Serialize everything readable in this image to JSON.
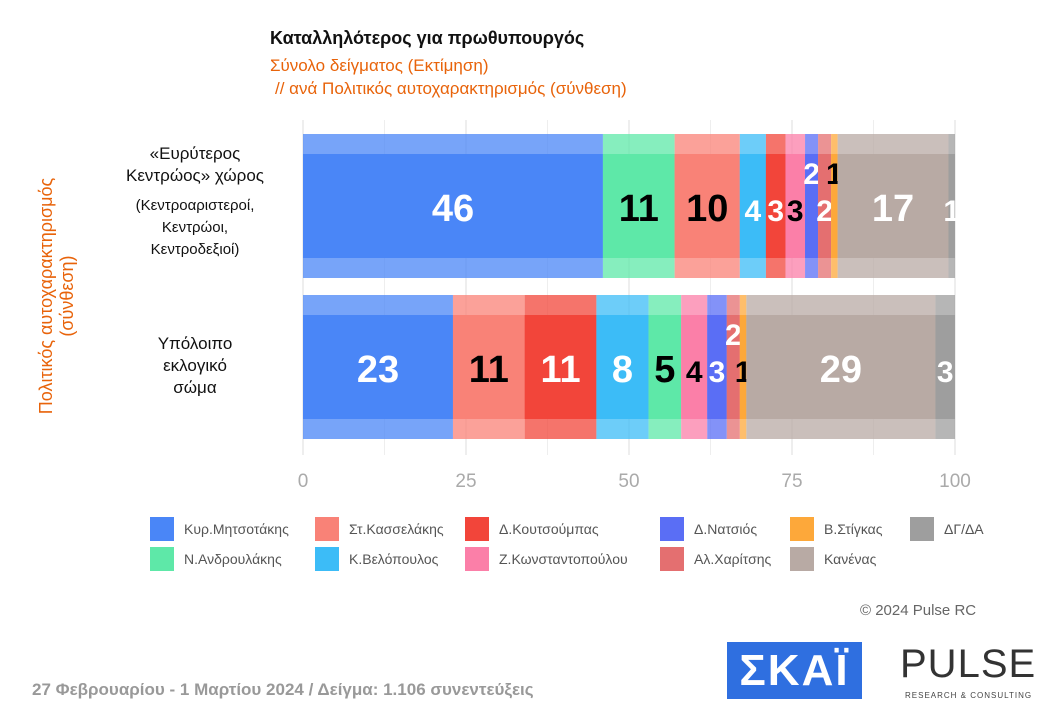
{
  "chart_data": {
    "type": "bar",
    "orientation": "horizontal",
    "stacked": true,
    "title": "Καταλληλότερος για πρωθυπουργός",
    "subtitle": [
      "Σύνολο δείγματος   (Εκτίμηση)",
      "// ανά Πολιτικός αυτοχαρακτηρισμός (σύνθεση)"
    ],
    "ylabel": "Πολιτικός αυτοχαρακτηρισμός (σύνθεση)",
    "categories": [
      {
        "lines": [
          "«Ευρύτερος",
          "Κεντρώος» χώρος"
        ],
        "sub": [
          "(Κεντροαριστεροί,",
          "Κεντρώοι,",
          "Κεντροδεξιοί)"
        ]
      },
      {
        "lines": [
          "Υπόλοιπο",
          "εκλογικό",
          "σώμα"
        ],
        "sub": []
      }
    ],
    "xlim": [
      0,
      100
    ],
    "xticks": [
      "0",
      "25",
      "50",
      "75",
      "100"
    ],
    "grid": true,
    "legend_position": "bottom",
    "series": [
      {
        "name": "Κυρ.Μητσοτάκης",
        "color": "#4a86f7",
        "values": [
          46,
          23
        ]
      },
      {
        "name": "Ν.Ανδρουλάκης",
        "color": "#5ee8a8",
        "values": [
          11,
          0
        ]
      },
      {
        "name": "Στ.Κασσελάκης",
        "color": "#f98277",
        "values": [
          10,
          11
        ]
      },
      {
        "name": "Δ.Κουτσούμπας",
        "color": "#f2453a",
        "values": [
          0,
          11
        ]
      },
      {
        "name": "Κ.Βελόπουλος",
        "color": "#3cbcf7",
        "values": [
          4,
          8
        ]
      },
      {
        "name": "Ν.Ανδρουλάκης (2)",
        "color": "#5ee8a8",
        "values": [
          0,
          5
        ]
      },
      {
        "name": "Δ.Κουτσούμπας (2)",
        "color": "#f2453a",
        "values": [
          3,
          0
        ]
      },
      {
        "name": "Ζ.Κωνσταντοπούλου",
        "color": "#fb7fa8",
        "values": [
          3,
          4
        ]
      },
      {
        "name": "Δ.Νατσιός",
        "color": "#5a6ef5",
        "values": [
          2,
          3
        ]
      },
      {
        "name": "Αλ.Χαρίτσης",
        "color": "#e46f70",
        "values": [
          2,
          2
        ]
      },
      {
        "name": "Β.Στίγκας",
        "color": "#fda83a",
        "values": [
          1,
          1
        ]
      },
      {
        "name": "Κανένας",
        "color": "#b8aaa4",
        "values": [
          17,
          29
        ]
      },
      {
        "name": "ΔΓ/ΔΑ",
        "color": "#9e9e9e",
        "values": [
          1,
          3
        ]
      }
    ],
    "segments": [
      [
        {
          "s": "Κυρ.Μητσοτάκης",
          "v": 46,
          "c": "#4a86f7",
          "t": "#fff"
        },
        {
          "s": "Ν.Ανδρουλάκης",
          "v": 11,
          "c": "#5ee8a8",
          "t": "#000"
        },
        {
          "s": "Στ.Κασσελάκης",
          "v": 10,
          "c": "#f98277",
          "t": "#000"
        },
        {
          "s": "Κ.Βελόπουλος",
          "v": 4,
          "c": "#3cbcf7",
          "t": "#fff"
        },
        {
          "s": "Δ.Κουτσούμπας",
          "v": 3,
          "c": "#f2453a",
          "t": "#fff"
        },
        {
          "s": "Ζ.Κωνσταντοπούλου",
          "v": 3,
          "c": "#fb7fa8",
          "t": "#000"
        },
        {
          "s": "Δ.Νατσιός",
          "v": 2,
          "c": "#5a6ef5",
          "t": "#fff"
        },
        {
          "s": "Αλ.Χαρίτσης",
          "v": 2,
          "c": "#e46f70",
          "t": "#fff"
        },
        {
          "s": "Β.Στίγκας",
          "v": 1,
          "c": "#fda83a",
          "t": "#000"
        },
        {
          "s": "Κανένας",
          "v": 17,
          "c": "#b8aaa4",
          "t": "#fff"
        },
        {
          "s": "ΔΓ/ΔΑ",
          "v": 1,
          "c": "#9e9e9e",
          "t": "#fff"
        }
      ],
      [
        {
          "s": "Κυρ.Μητσοτάκης",
          "v": 23,
          "c": "#4a86f7",
          "t": "#fff"
        },
        {
          "s": "Στ.Κασσελάκης",
          "v": 11,
          "c": "#f98277",
          "t": "#000"
        },
        {
          "s": "Δ.Κουτσούμπας",
          "v": 11,
          "c": "#f2453a",
          "t": "#fff"
        },
        {
          "s": "Κ.Βελόπουλος",
          "v": 8,
          "c": "#3cbcf7",
          "t": "#fff"
        },
        {
          "s": "Ν.Ανδρουλάκης",
          "v": 5,
          "c": "#5ee8a8",
          "t": "#000"
        },
        {
          "s": "Ζ.Κωνσταντοπούλου",
          "v": 4,
          "c": "#fb7fa8",
          "t": "#000"
        },
        {
          "s": "Δ.Νατσιός",
          "v": 3,
          "c": "#5a6ef5",
          "t": "#fff"
        },
        {
          "s": "Αλ.Χαρίτσης",
          "v": 2,
          "c": "#e46f70",
          "t": "#fff"
        },
        {
          "s": "Β.Στίγκας",
          "v": 1,
          "c": "#fda83a",
          "t": "#000"
        },
        {
          "s": "Κανένας",
          "v": 29,
          "c": "#b8aaa4",
          "t": "#fff"
        },
        {
          "s": "ΔΓ/ΔΑ",
          "v": 3,
          "c": "#9e9e9e",
          "t": "#fff"
        }
      ]
    ],
    "legend": [
      {
        "name": "Κυρ.Μητσοτάκης",
        "color": "#4a86f7"
      },
      {
        "name": "Στ.Κασσελάκης",
        "color": "#f98277"
      },
      {
        "name": "Δ.Κουτσούμπας",
        "color": "#f2453a"
      },
      {
        "name": "Δ.Νατσιός",
        "color": "#5a6ef5"
      },
      {
        "name": "Β.Στίγκας",
        "color": "#fda83a"
      },
      {
        "name": "ΔΓ/ΔΑ",
        "color": "#9e9e9e"
      },
      {
        "name": "Ν.Ανδρουλάκης",
        "color": "#5ee8a8"
      },
      {
        "name": "Κ.Βελόπουλος",
        "color": "#3cbcf7"
      },
      {
        "name": "Ζ.Κωνσταντοπούλου",
        "color": "#fb7fa8"
      },
      {
        "name": "Αλ.Χαρίτσης",
        "color": "#e46f70"
      },
      {
        "name": "Κανένας",
        "color": "#b8aaa4"
      }
    ]
  },
  "footer": "27 Φεβρουαρίου - 1 Μαρτίου 2024  /  Δείγμα:  1.106 συνεντεύξεις",
  "copyright": "© 2024 Pulse RC",
  "logos": {
    "skai": "ΣΚΑΪ",
    "pulse": "PULSE",
    "pulse_sub": "RESEARCH & CONSULTING"
  }
}
